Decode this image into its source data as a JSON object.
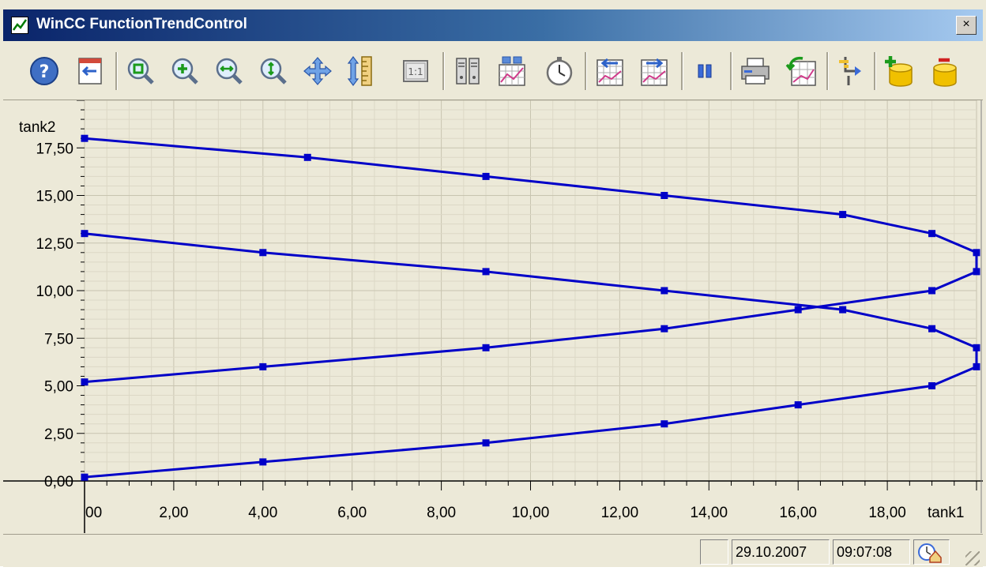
{
  "window": {
    "title": "WinCC FunctionTrendControl",
    "close_label": "×"
  },
  "toolbar": {
    "buttons": [
      {
        "name": "help-button",
        "icon": "help-icon"
      },
      {
        "name": "config-dialog-button",
        "icon": "config-dialog-icon"
      },
      {
        "name": "zoom-area-button",
        "icon": "zoom-area-icon"
      },
      {
        "name": "zoom-in-button",
        "icon": "zoom-in-icon"
      },
      {
        "name": "zoom-x-button",
        "icon": "zoom-x-icon"
      },
      {
        "name": "zoom-y-button",
        "icon": "zoom-y-icon"
      },
      {
        "name": "move-area-button",
        "icon": "move-icon"
      },
      {
        "name": "move-axis-button",
        "icon": "ruler-icon"
      },
      {
        "name": "original-view-button",
        "icon": "one-to-one-icon"
      },
      {
        "name": "select-data-connection-button",
        "icon": "data-connection-icon"
      },
      {
        "name": "select-trends-button",
        "icon": "select-trends-icon"
      },
      {
        "name": "time-range-button",
        "icon": "stopwatch-icon"
      },
      {
        "name": "previous-trend-button",
        "icon": "previous-trend-icon"
      },
      {
        "name": "next-trend-button",
        "icon": "next-trend-icon"
      },
      {
        "name": "stop-button",
        "icon": "pause-icon"
      },
      {
        "name": "print-button",
        "icon": "printer-icon"
      },
      {
        "name": "export-button",
        "icon": "export-icon"
      },
      {
        "name": "connect-backup-button",
        "icon": "connect-icon"
      },
      {
        "name": "add-archive-button",
        "icon": "database-add-icon"
      },
      {
        "name": "remove-archive-button",
        "icon": "database-remove-icon"
      }
    ]
  },
  "chart_data": {
    "type": "line",
    "xlabel": "tank1",
    "ylabel": "tank2",
    "xlim": [
      0,
      20
    ],
    "ylim": [
      0,
      20
    ],
    "x_ticks": [
      "00",
      "2,00",
      "4,00",
      "6,00",
      "8,00",
      "10,00",
      "12,00",
      "14,00",
      "16,00",
      "18,00"
    ],
    "y_ticks": [
      "0,00",
      "2,50",
      "5,00",
      "7,50",
      "10,00",
      "12,50",
      "15,00",
      "17,50"
    ],
    "grid": true,
    "color": "#0000c8",
    "series": [
      {
        "points": [
          [
            0,
            18
          ],
          [
            5,
            17
          ],
          [
            9,
            16
          ],
          [
            13,
            15
          ],
          [
            17,
            14
          ],
          [
            19,
            13
          ],
          [
            20,
            12
          ],
          [
            20,
            11
          ],
          [
            19,
            10
          ],
          [
            16,
            9
          ],
          [
            13,
            8
          ],
          [
            9,
            7
          ],
          [
            4,
            6
          ],
          [
            0,
            5.2
          ]
        ]
      },
      {
        "points": [
          [
            0,
            13
          ],
          [
            4,
            12
          ],
          [
            9,
            11
          ],
          [
            13,
            10
          ],
          [
            17,
            9
          ],
          [
            19,
            8
          ],
          [
            20,
            7
          ],
          [
            20,
            6
          ],
          [
            19,
            5
          ],
          [
            16,
            4
          ],
          [
            13,
            3
          ],
          [
            9,
            2
          ],
          [
            4,
            1
          ],
          [
            0,
            0.2
          ]
        ]
      }
    ]
  },
  "status": {
    "date": "29.10.2007",
    "time": "09:07:08",
    "icon": "clock-home-icon"
  },
  "colors": {
    "plot_bg": "#ece9d8",
    "grid": "#d0ccb8",
    "axis": "#000000",
    "trend": "#0000c8"
  }
}
